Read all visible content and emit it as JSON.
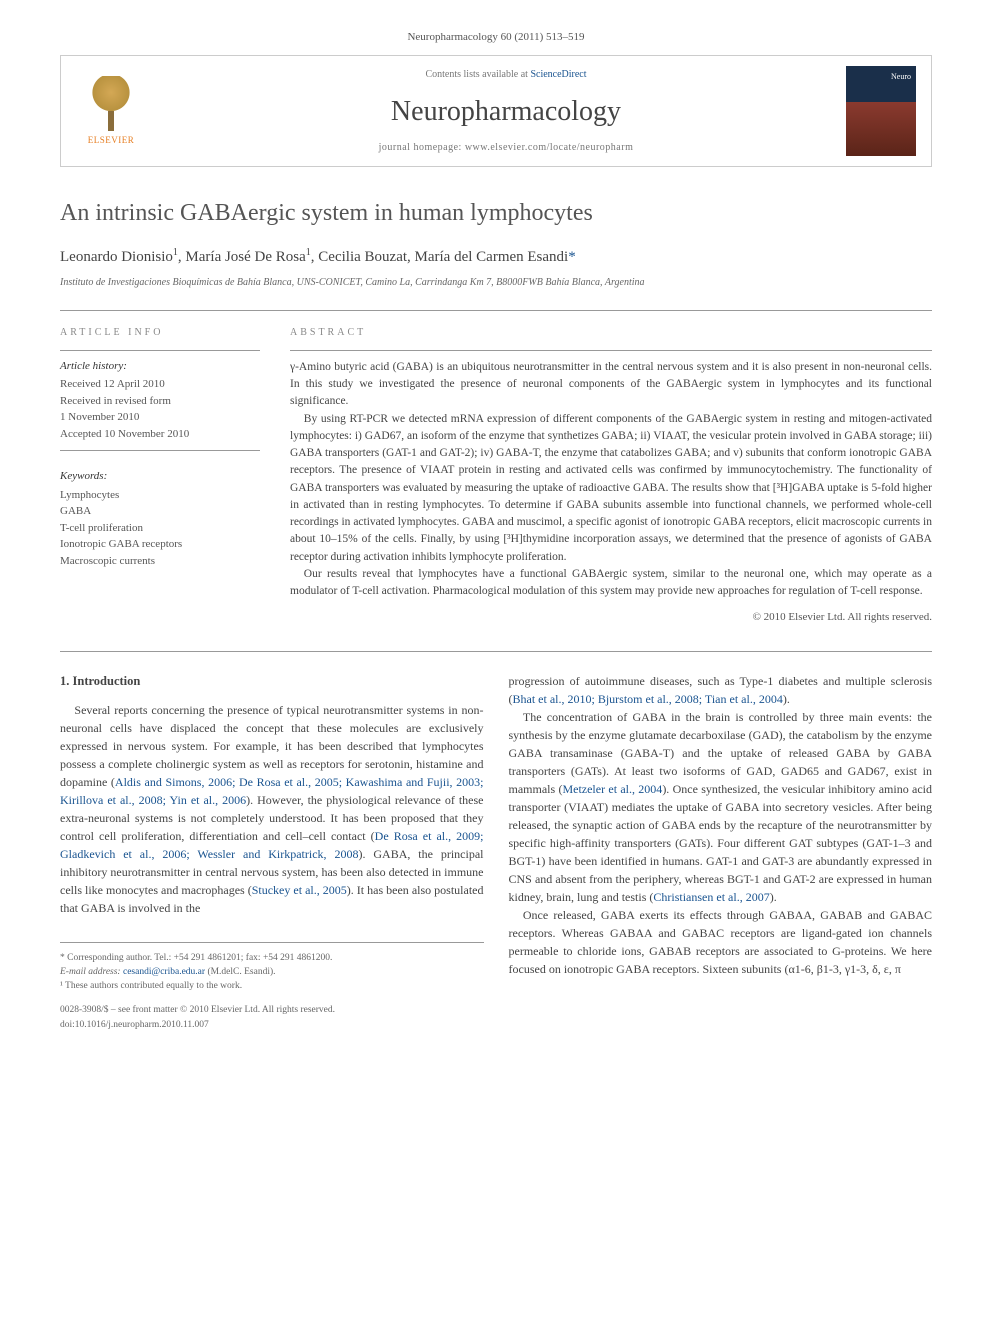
{
  "journal_ref": "Neuropharmacology 60 (2011) 513–519",
  "header": {
    "contents_prefix": "Contents lists available at ",
    "contents_link": "ScienceDirect",
    "journal_name": "Neuropharmacology",
    "homepage_prefix": "journal homepage: ",
    "homepage_url": "www.elsevier.com/locate/neuropharm",
    "publisher": "ELSEVIER"
  },
  "title": "An intrinsic GABAergic system in human lymphocytes",
  "authors_html": "Leonardo Dionisio ¹, María José De Rosa ¹, Cecilia Bouzat, María del Carmen Esandi *",
  "authors": {
    "a1": "Leonardo Dionisio",
    "a1_sup": "1",
    "a2": "María José De Rosa",
    "a2_sup": "1",
    "a3": "Cecilia Bouzat",
    "a4": "María del Carmen Esandi",
    "a4_corr": "*"
  },
  "affiliation": "Instituto de Investigaciones Bioquímicas de Bahía Blanca, UNS-CONICET, Camino La, Carrindanga Km 7, B8000FWB Bahía Blanca, Argentina",
  "info": {
    "heading": "ARTICLE INFO",
    "history_label": "Article history:",
    "h1": "Received 12 April 2010",
    "h2": "Received in revised form",
    "h3": "1 November 2010",
    "h4": "Accepted 10 November 2010",
    "keywords_label": "Keywords:",
    "k1": "Lymphocytes",
    "k2": "GABA",
    "k3": "T-cell proliferation",
    "k4": "Ionotropic GABA receptors",
    "k5": "Macroscopic currents"
  },
  "abstract": {
    "heading": "ABSTRACT",
    "p1": "γ-Amino butyric acid (GABA) is an ubiquitous neurotransmitter in the central nervous system and it is also present in non-neuronal cells. In this study we investigated the presence of neuronal components of the GABAergic system in lymphocytes and its functional significance.",
    "p2": "By using RT-PCR we detected mRNA expression of different components of the GABAergic system in resting and mitogen-activated lymphocytes: i) GAD67, an isoform of the enzyme that synthetizes GABA; ii) VIAAT, the vesicular protein involved in GABA storage; iii) GABA transporters (GAT-1 and GAT-2); iv) GABA-T, the enzyme that catabolizes GABA; and v) subunits that conform ionotropic GABA receptors. The presence of VIAAT protein in resting and activated cells was confirmed by immunocytochemistry. The functionality of GABA transporters was evaluated by measuring the uptake of radioactive GABA. The results show that [³H]GABA uptake is 5-fold higher in activated than in resting lymphocytes. To determine if GABA subunits assemble into functional channels, we performed whole-cell recordings in activated lymphocytes. GABA and muscimol, a specific agonist of ionotropic GABA receptors, elicit macroscopic currents in about 10–15% of the cells. Finally, by using [³H]thymidine incorporation assays, we determined that the presence of agonists of GABA receptor during activation inhibits lymphocyte proliferation.",
    "p3": "Our results reveal that lymphocytes have a functional GABAergic system, similar to the neuronal one, which may operate as a modulator of T-cell activation. Pharmacological modulation of this system may provide new approaches for regulation of T-cell response.",
    "copyright": "© 2010 Elsevier Ltd. All rights reserved."
  },
  "body": {
    "intro_heading": "1. Introduction",
    "col1_p1a": "Several reports concerning the presence of typical neurotransmitter systems in non-neuronal cells have displaced the concept that these molecules are exclusively expressed in nervous system. For example, it has been described that lymphocytes possess a complete cholinergic system as well as receptors for serotonin, histamine and dopamine (",
    "col1_ref1": "Aldis and Simons, 2006; De Rosa et al., 2005; Kawashima and Fujii, 2003; Kirillova et al., 2008; Yin et al., 2006",
    "col1_p1b": "). However, the physiological relevance of these extra-neuronal systems is not completely understood. It has been proposed that they control cell proliferation, differentiation and cell–cell contact (",
    "col1_ref2": "De Rosa et al., 2009; Gladkevich et al., 2006; Wessler and Kirkpatrick, 2008",
    "col1_p1c": "). GABA, the principal inhibitory neurotransmitter in central nervous system, has been also detected in immune cells like monocytes and macrophages (",
    "col1_ref3": "Stuckey et al., 2005",
    "col1_p1d": "). It has been also postulated that GABA is involved in the",
    "col2_p1a": "progression of autoimmune diseases, such as Type-1 diabetes and multiple sclerosis (",
    "col2_ref1": "Bhat et al., 2010; Bjurstom et al., 2008; Tian et al., 2004",
    "col2_p1b": ").",
    "col2_p2a": "The concentration of GABA in the brain is controlled by three main events: the synthesis by the enzyme glutamate decarboxilase (GAD), the catabolism by the enzyme GABA transaminase (GABA-T) and the uptake of released GABA by GABA transporters (GATs). At least two isoforms of GAD, GAD65 and GAD67, exist in mammals (",
    "col2_ref2": "Metzeler et al., 2004",
    "col2_p2b": "). Once synthesized, the vesicular inhibitory amino acid transporter (VIAAT) mediates the uptake of GABA into secretory vesicles. After being released, the synaptic action of GABA ends by the recapture of the neurotransmitter by specific high-affinity transporters (GATs). Four different GAT subtypes (GAT-1–3 and BGT-1) have been identified in humans. GAT-1 and GAT-3 are abundantly expressed in CNS and absent from the periphery, whereas BGT-1 and GAT-2 are expressed in human kidney, brain, lung and testis (",
    "col2_ref3": "Christiansen et al., 2007",
    "col2_p2c": ").",
    "col2_p3": "Once released, GABA exerts its effects through GABAA, GABAB and GABAC receptors. Whereas GABAA and GABAC receptors are ligand-gated ion channels permeable to chloride ions, GABAB receptors are associated to G-proteins. We here focused on ionotropic GABA receptors. Sixteen subunits (α1-6, β1-3, γ1-3, δ, ε, π"
  },
  "footer": {
    "corr": "* Corresponding author. Tel.: +54 291 4861201; fax: +54 291 4861200.",
    "email_label": "E-mail address: ",
    "email": "cesandi@criba.edu.ar",
    "email_suffix": " (M.delC. Esandi).",
    "equal": "¹ These authors contributed equally to the work.",
    "issn": "0028-3908/$ – see front matter © 2010 Elsevier Ltd. All rights reserved.",
    "doi": "doi:10.1016/j.neuropharm.2010.11.007"
  },
  "colors": {
    "link": "#1a5490",
    "text": "#444444",
    "muted": "#777777",
    "border": "#999999"
  }
}
